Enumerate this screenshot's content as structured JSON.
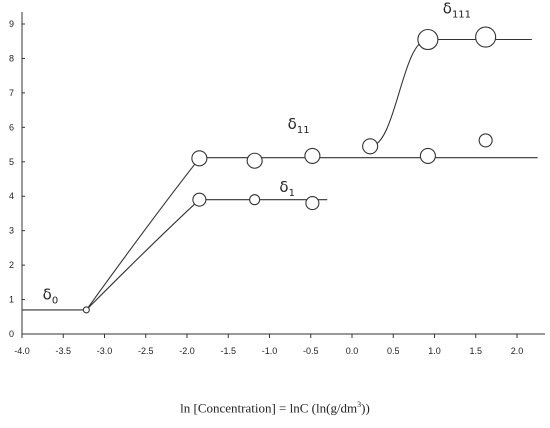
{
  "chart_data": {
    "type": "scatter",
    "xlim": [
      -4.0,
      2.0
    ],
    "ylim": [
      0,
      9
    ],
    "x_ticks": [
      -4.0,
      -3.5,
      -3.0,
      -2.5,
      -2.0,
      -1.5,
      -1.0,
      -0.5,
      0.0,
      0.5,
      1.0,
      1.5,
      2.0
    ],
    "y_ticks": [
      0,
      1,
      2,
      3,
      4,
      5,
      6,
      7,
      8,
      9
    ],
    "grid": false,
    "xlabel": {
      "main": "ln [Concentration] = lnC (ln(g/dm",
      "sup": "3",
      "tail": "))"
    },
    "points": [
      {
        "x": -3.22,
        "y": 0.7,
        "size": "tiny"
      },
      {
        "x": -1.85,
        "y": 3.9,
        "size": "small"
      },
      {
        "x": -1.18,
        "y": 3.9,
        "size": "tiny-small"
      },
      {
        "x": -0.48,
        "y": 3.8,
        "size": "small"
      },
      {
        "x": -1.85,
        "y": 5.1,
        "size": "medium"
      },
      {
        "x": -1.18,
        "y": 5.03,
        "size": "medium"
      },
      {
        "x": -0.48,
        "y": 5.17,
        "size": "medium"
      },
      {
        "x": 0.22,
        "y": 5.45,
        "size": "medium"
      },
      {
        "x": 0.92,
        "y": 5.17,
        "size": "medium"
      },
      {
        "x": 1.62,
        "y": 5.62,
        "size": "small"
      },
      {
        "x": 0.92,
        "y": 8.55,
        "size": "large"
      },
      {
        "x": 1.62,
        "y": 8.62,
        "size": "large"
      }
    ],
    "lines": [
      {
        "name": "delta0-plateau",
        "points": [
          [
            -4.0,
            0.7
          ],
          [
            -3.22,
            0.7
          ]
        ]
      },
      {
        "name": "delta1-rise",
        "curve": "concave",
        "points": [
          [
            -3.22,
            0.7
          ],
          [
            -1.85,
            3.9
          ]
        ]
      },
      {
        "name": "delta1-plateau",
        "points": [
          [
            -1.85,
            3.9
          ],
          [
            -0.3,
            3.9
          ]
        ]
      },
      {
        "name": "delta11-rise",
        "curve": "concave",
        "points": [
          [
            -3.22,
            0.7
          ],
          [
            -1.85,
            5.1
          ]
        ]
      },
      {
        "name": "delta11-plateau",
        "points": [
          [
            -1.85,
            5.12
          ],
          [
            2.25,
            5.12
          ]
        ]
      },
      {
        "name": "delta111-rise",
        "curve": "convex-concave",
        "points": [
          [
            0.22,
            5.45
          ],
          [
            0.92,
            8.55
          ]
        ]
      },
      {
        "name": "delta111-plateau",
        "points": [
          [
            0.92,
            8.55
          ],
          [
            2.18,
            8.55
          ]
        ]
      }
    ],
    "annotations": [
      {
        "base": "δ",
        "sub": "0",
        "x": -3.75,
        "y": 1.0
      },
      {
        "base": "δ",
        "sub": "1",
        "x": -0.88,
        "y": 4.12
      },
      {
        "base": "δ",
        "sub": "11",
        "x": -0.78,
        "y": 5.95
      },
      {
        "base": "δ",
        "sub": "111",
        "x": 1.1,
        "y": 9.3
      }
    ]
  }
}
